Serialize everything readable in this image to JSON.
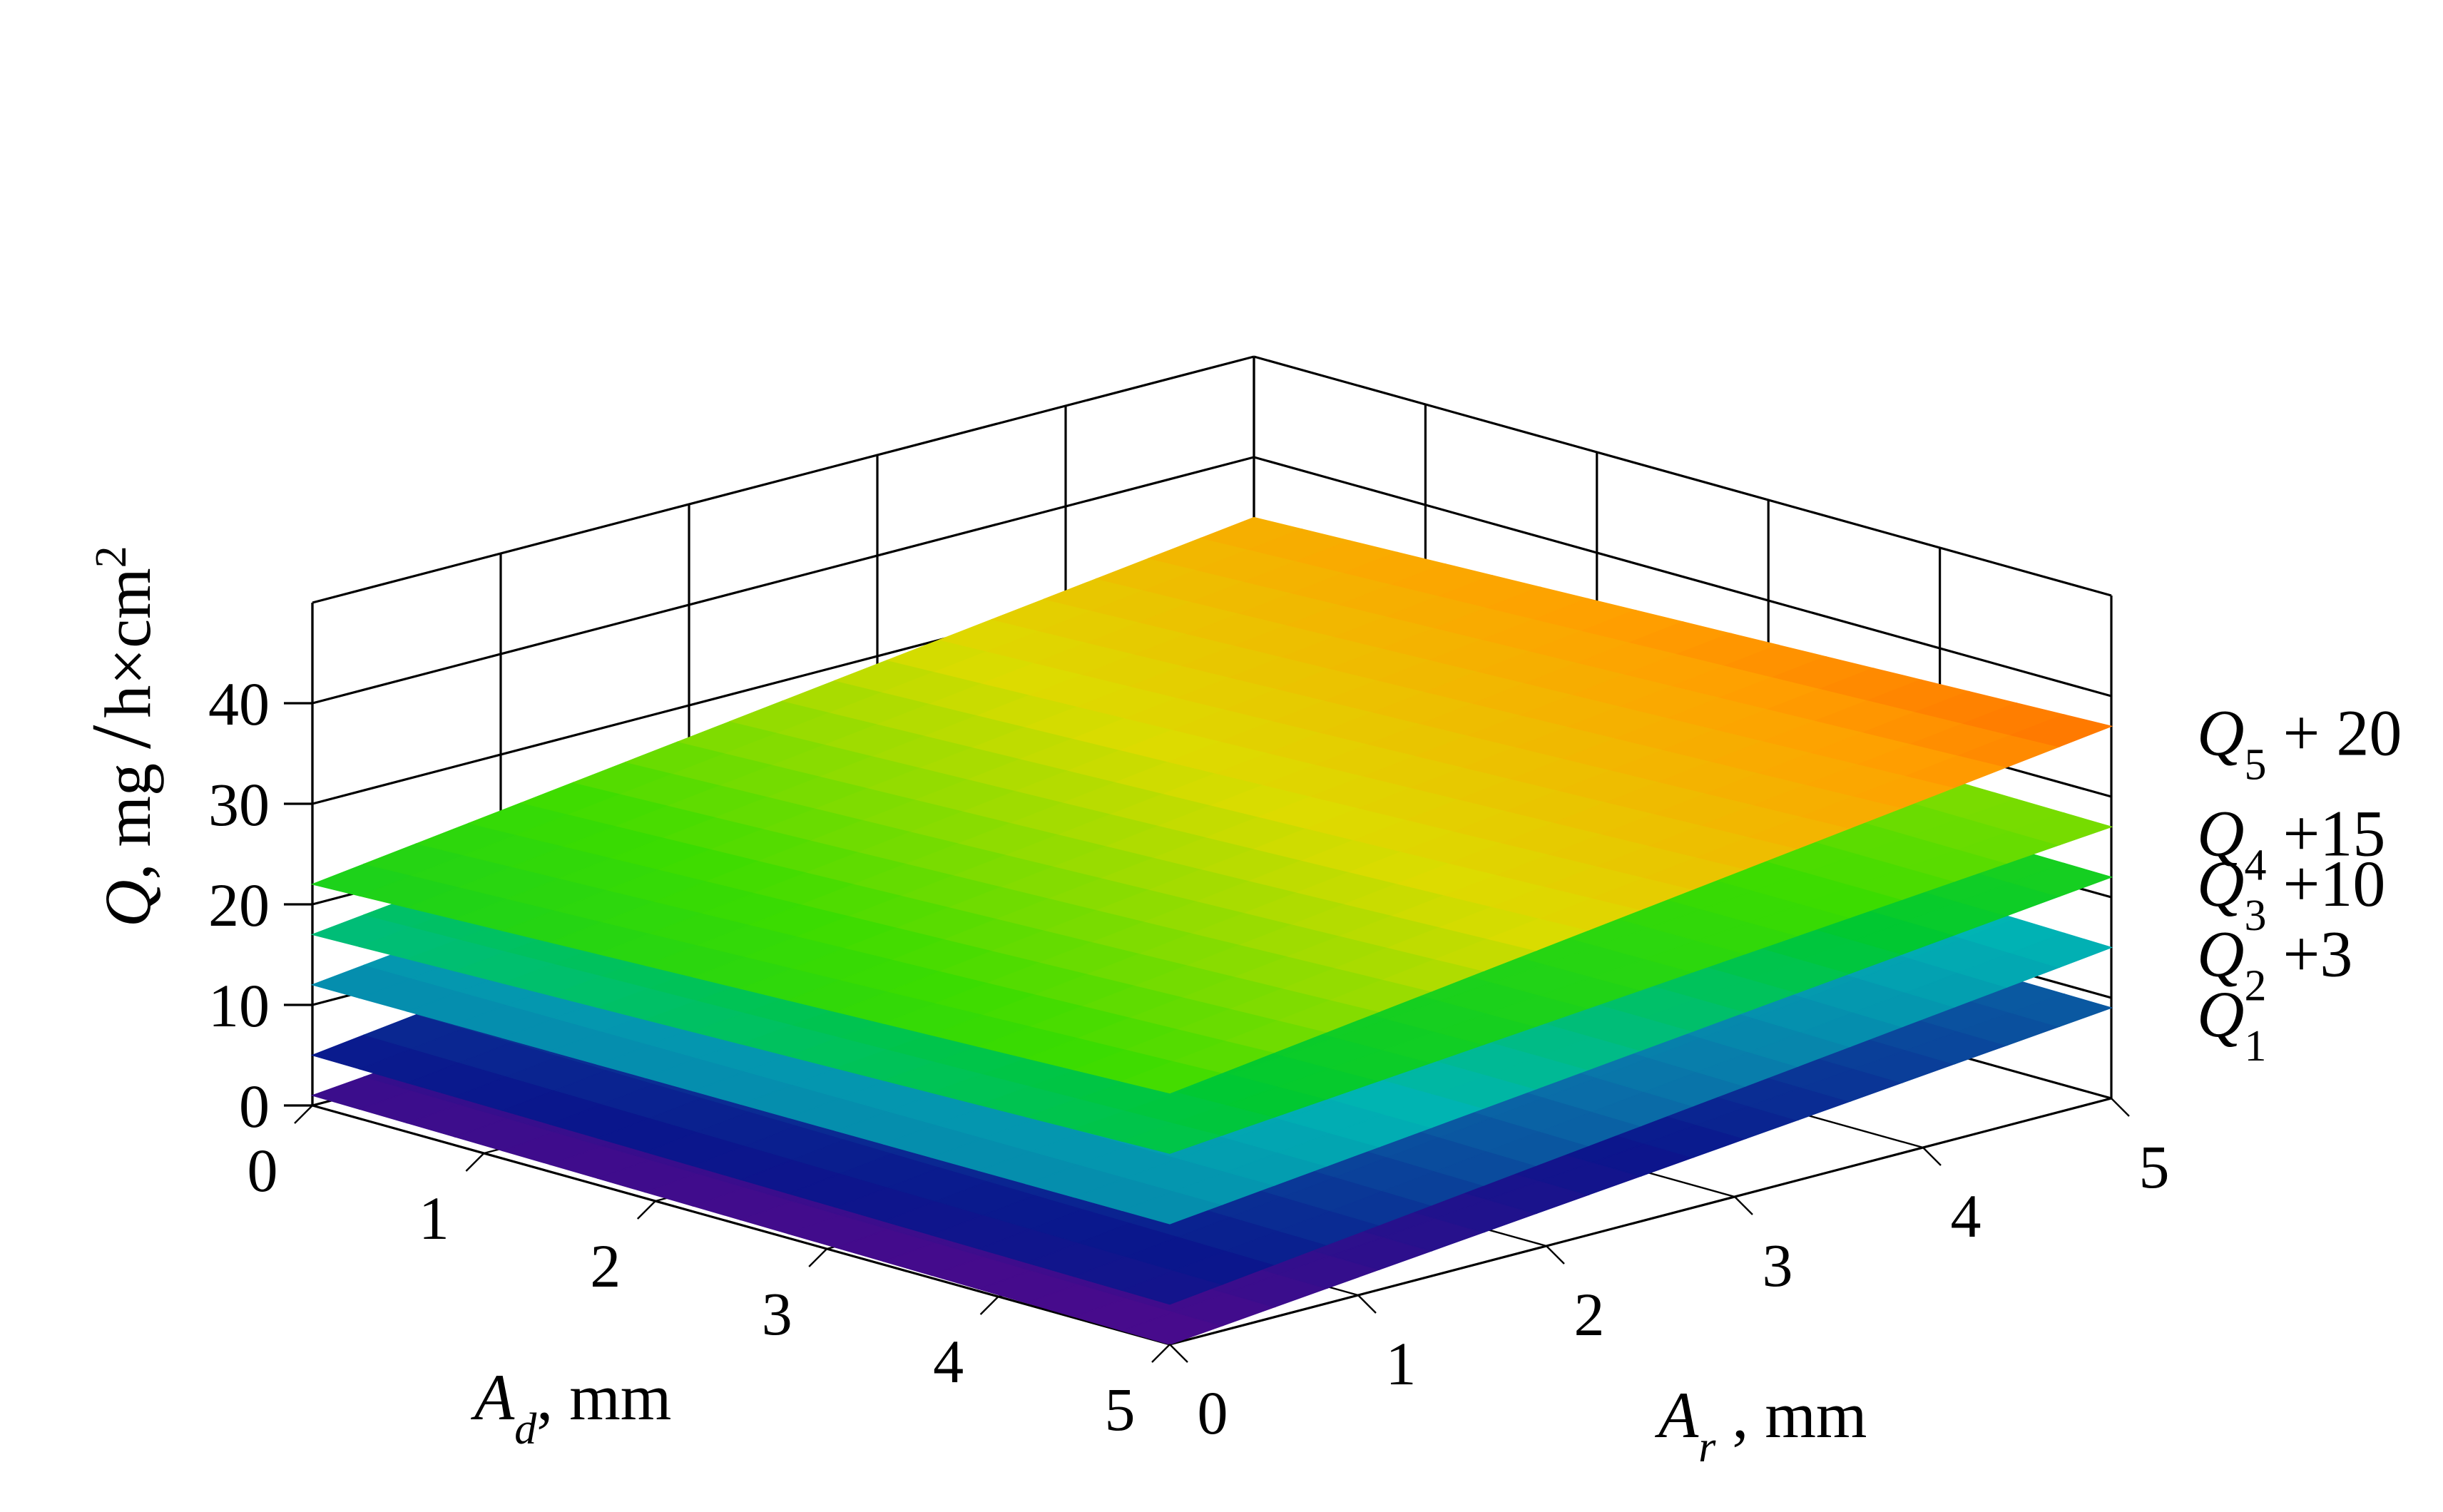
{
  "chart_data": {
    "type": "surface3d",
    "title": "",
    "x_axis": {
      "label_symbol": "A",
      "label_sub": "d",
      "label_unit": ", mm",
      "range": [
        0,
        5
      ],
      "ticks": [
        "0",
        "1",
        "2",
        "3",
        "4",
        "5"
      ]
    },
    "y_axis": {
      "label_symbol": "A",
      "label_sub": "r",
      "label_unit": " , mm",
      "range": [
        0,
        5
      ],
      "ticks": [
        "0",
        "1",
        "2",
        "3",
        "4",
        "5"
      ]
    },
    "z_axis": {
      "label_symbol": "Q",
      "label_unit": ", mg",
      "label_den": "h×cm",
      "label_exp": "2",
      "range": [
        0,
        40
      ],
      "ticks": [
        "0",
        "10",
        "20",
        "30",
        "40"
      ]
    },
    "grid": true,
    "colormap": [
      "#4b0a8c",
      "#0a168c",
      "#0a6ea8",
      "#00b4b4",
      "#00c832",
      "#3cdc00",
      "#dcdc00",
      "#ffa000",
      "#ff2800"
    ],
    "series": [
      {
        "name": "Q1",
        "label_symbol": "Q",
        "label_sub": "1",
        "label_suffix": "",
        "offset": 0,
        "corners": {
          "x0y0": 1,
          "x5y0": 0,
          "x0y5": 10,
          "x5y5": 9
        }
      },
      {
        "name": "Q2 + 3",
        "label_symbol": "Q",
        "label_sub": "2",
        "label_suffix": " +3",
        "offset": 3,
        "corners": {
          "x0y0": 5,
          "x5y0": 4,
          "x0y5": 17,
          "x5y5": 15
        }
      },
      {
        "name": "Q3 + 10",
        "label_symbol": "Q",
        "label_sub": "3",
        "label_suffix": " +10",
        "offset": 10,
        "corners": {
          "x0y0": 12,
          "x5y0": 12,
          "x0y5": 23,
          "x5y5": 22
        }
      },
      {
        "name": "Q4 + 15",
        "label_symbol": "Q",
        "label_sub": "4",
        "label_suffix": " +15",
        "offset": 15,
        "corners": {
          "x0y0": 17,
          "x5y0": 19,
          "x0y5": 28,
          "x5y5": 27
        }
      },
      {
        "name": "Q5 + 20",
        "label_symbol": "Q",
        "label_sub": "5",
        "label_suffix": " + 20",
        "offset": 20,
        "corners": {
          "x0y0": 22,
          "x5y0": 25,
          "x0y5": 34,
          "x5y5": 37
        }
      }
    ]
  }
}
